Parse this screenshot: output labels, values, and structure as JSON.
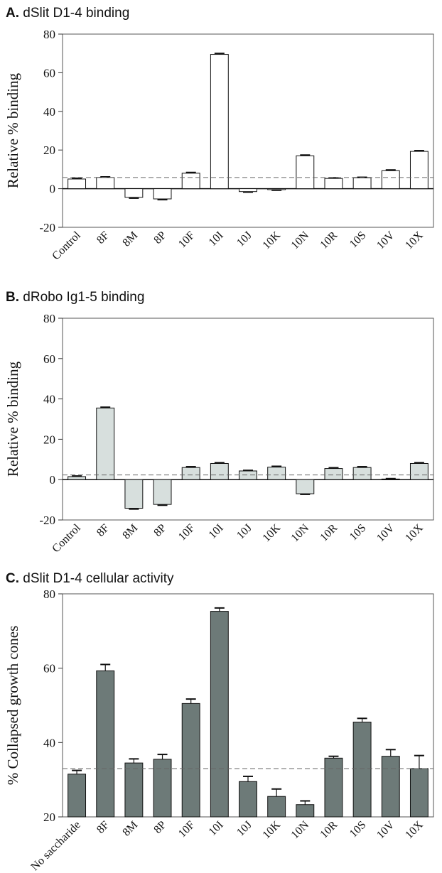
{
  "chart_data": [
    {
      "type": "bar",
      "panel": "A.",
      "title": "dSlit D1-4 binding",
      "ylabel": "Relative % binding",
      "xlabel": "",
      "ylim": [
        -20,
        80
      ],
      "yticks": [
        -20,
        0,
        20,
        40,
        60,
        80
      ],
      "categories": [
        "Control",
        "8F",
        "8M",
        "8P",
        "10F",
        "10I",
        "10J",
        "10K",
        "10N",
        "10R",
        "10S",
        "10V",
        "10X"
      ],
      "values": [
        5,
        5.8,
        -4.5,
        -5.3,
        8,
        69.5,
        -1.5,
        -0.5,
        17,
        5.3,
        5.6,
        9.3,
        19.3
      ],
      "errors": [
        0.4,
        0.3,
        0.4,
        0.4,
        0.4,
        0.5,
        0.3,
        0.3,
        0.4,
        0.3,
        0.3,
        0.4,
        0.4
      ],
      "reference_line": 5.8,
      "bar_color": "#ffffff",
      "grid": false
    },
    {
      "type": "bar",
      "panel": "B.",
      "title": "dRobo Ig1-5 binding",
      "ylabel": "Relative % binding",
      "xlabel": "",
      "ylim": [
        -20,
        80
      ],
      "yticks": [
        -20,
        0,
        20,
        40,
        60,
        80
      ],
      "categories": [
        "Control",
        "8F",
        "8M",
        "8P",
        "10F",
        "10I",
        "10J",
        "10K",
        "10N",
        "10R",
        "10S",
        "10V",
        "10X"
      ],
      "values": [
        1.5,
        35.5,
        -14.2,
        -12.3,
        6,
        8,
        4.3,
        6.2,
        -7,
        5.5,
        6,
        0.3,
        8
      ],
      "errors": [
        0.3,
        0.4,
        0.4,
        0.4,
        0.4,
        0.4,
        0.3,
        0.4,
        0.3,
        0.4,
        0.4,
        0.2,
        0.4
      ],
      "reference_line": 2.3,
      "bar_color": "#d7dfdd",
      "grid": false
    },
    {
      "type": "bar",
      "panel": "C.",
      "title": "dSlit D1-4 cellular activity",
      "ylabel": "% Collapsed growth cones",
      "xlabel": "",
      "ylim": [
        20,
        80
      ],
      "yticks": [
        20,
        40,
        60,
        80
      ],
      "categories": [
        "No saccharide",
        "8F",
        "8M",
        "8P",
        "10F",
        "10I",
        "10J",
        "10K",
        "10N",
        "10R",
        "10S",
        "10V",
        "10X"
      ],
      "values": [
        31.5,
        59.3,
        34.5,
        35.5,
        50.5,
        75.3,
        29.5,
        25.5,
        23.3,
        35.8,
        45.5,
        36.3,
        33
      ],
      "errors": [
        1.0,
        1.7,
        1.1,
        1.3,
        1.2,
        0.9,
        1.4,
        2.0,
        1.0,
        0.5,
        1.0,
        1.8,
        3.5
      ],
      "reference_line": 33,
      "bar_color": "#6d7a78",
      "grid": false
    }
  ]
}
